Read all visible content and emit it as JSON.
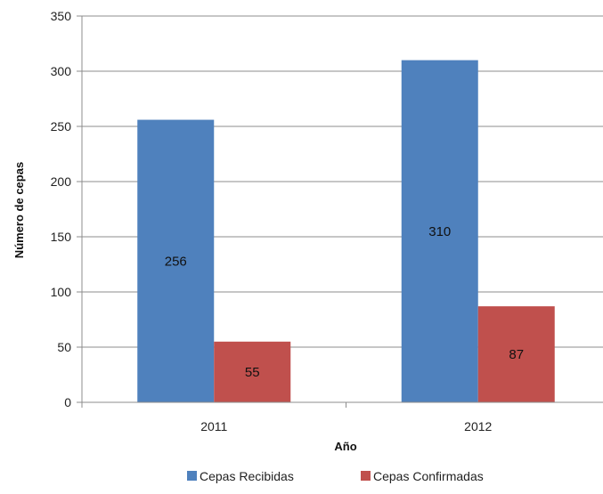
{
  "chart_data": {
    "type": "bar",
    "categories": [
      "2011",
      "2012"
    ],
    "series": [
      {
        "name": "Cepas Recibidas",
        "values": [
          256,
          310
        ],
        "color": "#4f81bd"
      },
      {
        "name": "Cepas Confirmadas",
        "values": [
          55,
          87
        ],
        "color": "#c0504d"
      }
    ],
    "xlabel": "Año",
    "ylabel": "Número de cepas",
    "ylim": [
      0,
      350
    ],
    "yticks": [
      0,
      50,
      100,
      150,
      200,
      250,
      300,
      350
    ],
    "grid": true,
    "legend_position": "bottom",
    "data_labels": true
  }
}
